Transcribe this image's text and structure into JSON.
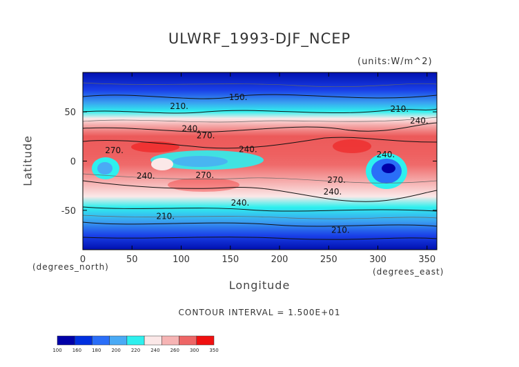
{
  "chart_data": {
    "type": "heatmap",
    "title": "ULWRF_1993-DJF_NCEP",
    "units_label": "(units:W/m^2)",
    "xlabel": "Longitude",
    "ylabel": "Latitude",
    "x_unit": "(degrees_east)",
    "y_unit": "(degrees_north)",
    "xlim": [
      0,
      360
    ],
    "ylim": [
      -90,
      90
    ],
    "x_ticks": [
      0,
      50,
      100,
      150,
      200,
      250,
      300,
      350
    ],
    "y_ticks": [
      -50,
      0,
      50
    ],
    "contour_interval": "CONTOUR INTERVAL = 1.500E+01",
    "contour_labels": [
      {
        "text": "150.",
        "lon": 158,
        "lat": 62
      },
      {
        "text": "210.",
        "lon": 98,
        "lat": 53
      },
      {
        "text": "210.",
        "lon": 322,
        "lat": 50
      },
      {
        "text": "240.",
        "lon": 342,
        "lat": 38
      },
      {
        "text": "240.",
        "lon": 110,
        "lat": 30
      },
      {
        "text": "270.",
        "lon": 125,
        "lat": 23
      },
      {
        "text": "270.",
        "lon": 32,
        "lat": 8
      },
      {
        "text": "240.",
        "lon": 168,
        "lat": 9
      },
      {
        "text": "240.",
        "lon": 308,
        "lat": 4
      },
      {
        "text": "240.",
        "lon": 64,
        "lat": -18
      },
      {
        "text": "270.",
        "lon": 124,
        "lat": -17
      },
      {
        "text": "270.",
        "lon": 258,
        "lat": -22
      },
      {
        "text": "240.",
        "lon": 254,
        "lat": -34
      },
      {
        "text": "240.",
        "lon": 160,
        "lat": -45
      },
      {
        "text": "210.",
        "lon": 84,
        "lat": -59
      },
      {
        "text": "210.",
        "lon": 262,
        "lat": -73
      }
    ],
    "colorbar": {
      "ticks": [
        "100",
        "160",
        "180",
        "200",
        "220",
        "240",
        "260",
        "300",
        "350"
      ],
      "colors": [
        "#0000a8",
        "#0030e0",
        "#2a6ef8",
        "#4aaaf5",
        "#2ef0ee",
        "#fbe8e8",
        "#f6b4b4",
        "#ee6666",
        "#f01010"
      ]
    }
  }
}
